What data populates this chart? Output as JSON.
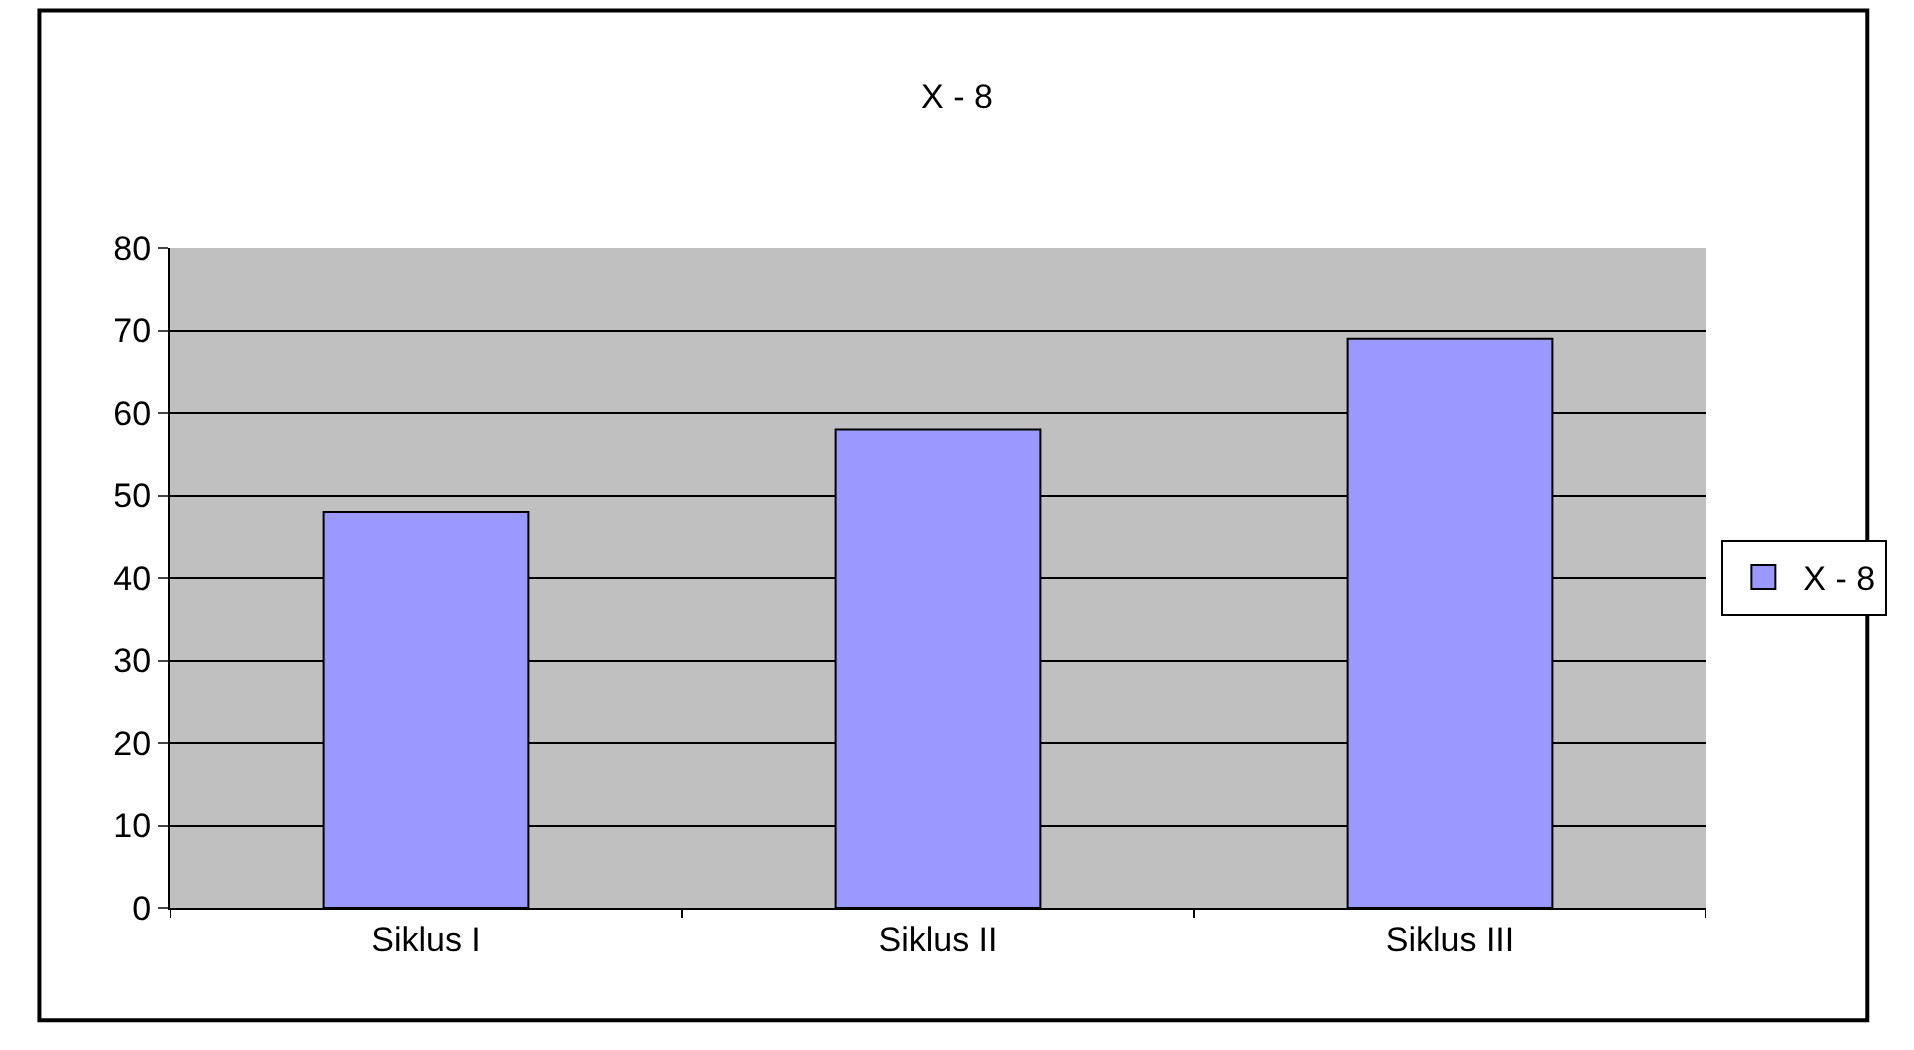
{
  "chart_data": {
    "type": "bar",
    "title": "X - 8",
    "categories": [
      "Siklus I",
      "Siklus II",
      "Siklus III"
    ],
    "series": [
      {
        "name": "X - 8",
        "color": "#9999ff",
        "values": [
          48,
          58,
          69
        ]
      }
    ],
    "ylim": [
      0,
      80
    ],
    "yticks": [
      0,
      10,
      20,
      30,
      40,
      50,
      60,
      70,
      80
    ],
    "grid": "y",
    "legend": "right"
  }
}
